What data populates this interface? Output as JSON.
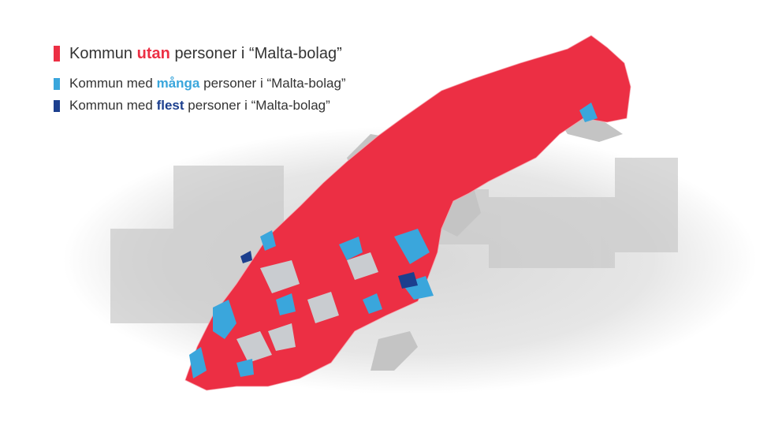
{
  "legend": {
    "items": [
      {
        "prefix": "Kommun",
        "emphasis": "utan",
        "suffix": "personer i “Malta-bolag”",
        "color": "#ec2f44"
      },
      {
        "prefix": "Kommun med",
        "emphasis": "många",
        "suffix": "personer i “Malta-bolag”",
        "color": "#3aa6dc"
      },
      {
        "prefix": "Kommun med",
        "emphasis": "flest",
        "suffix": "personer i “Malta-bolag”",
        "color": "#1c3f8e"
      }
    ]
  }
}
